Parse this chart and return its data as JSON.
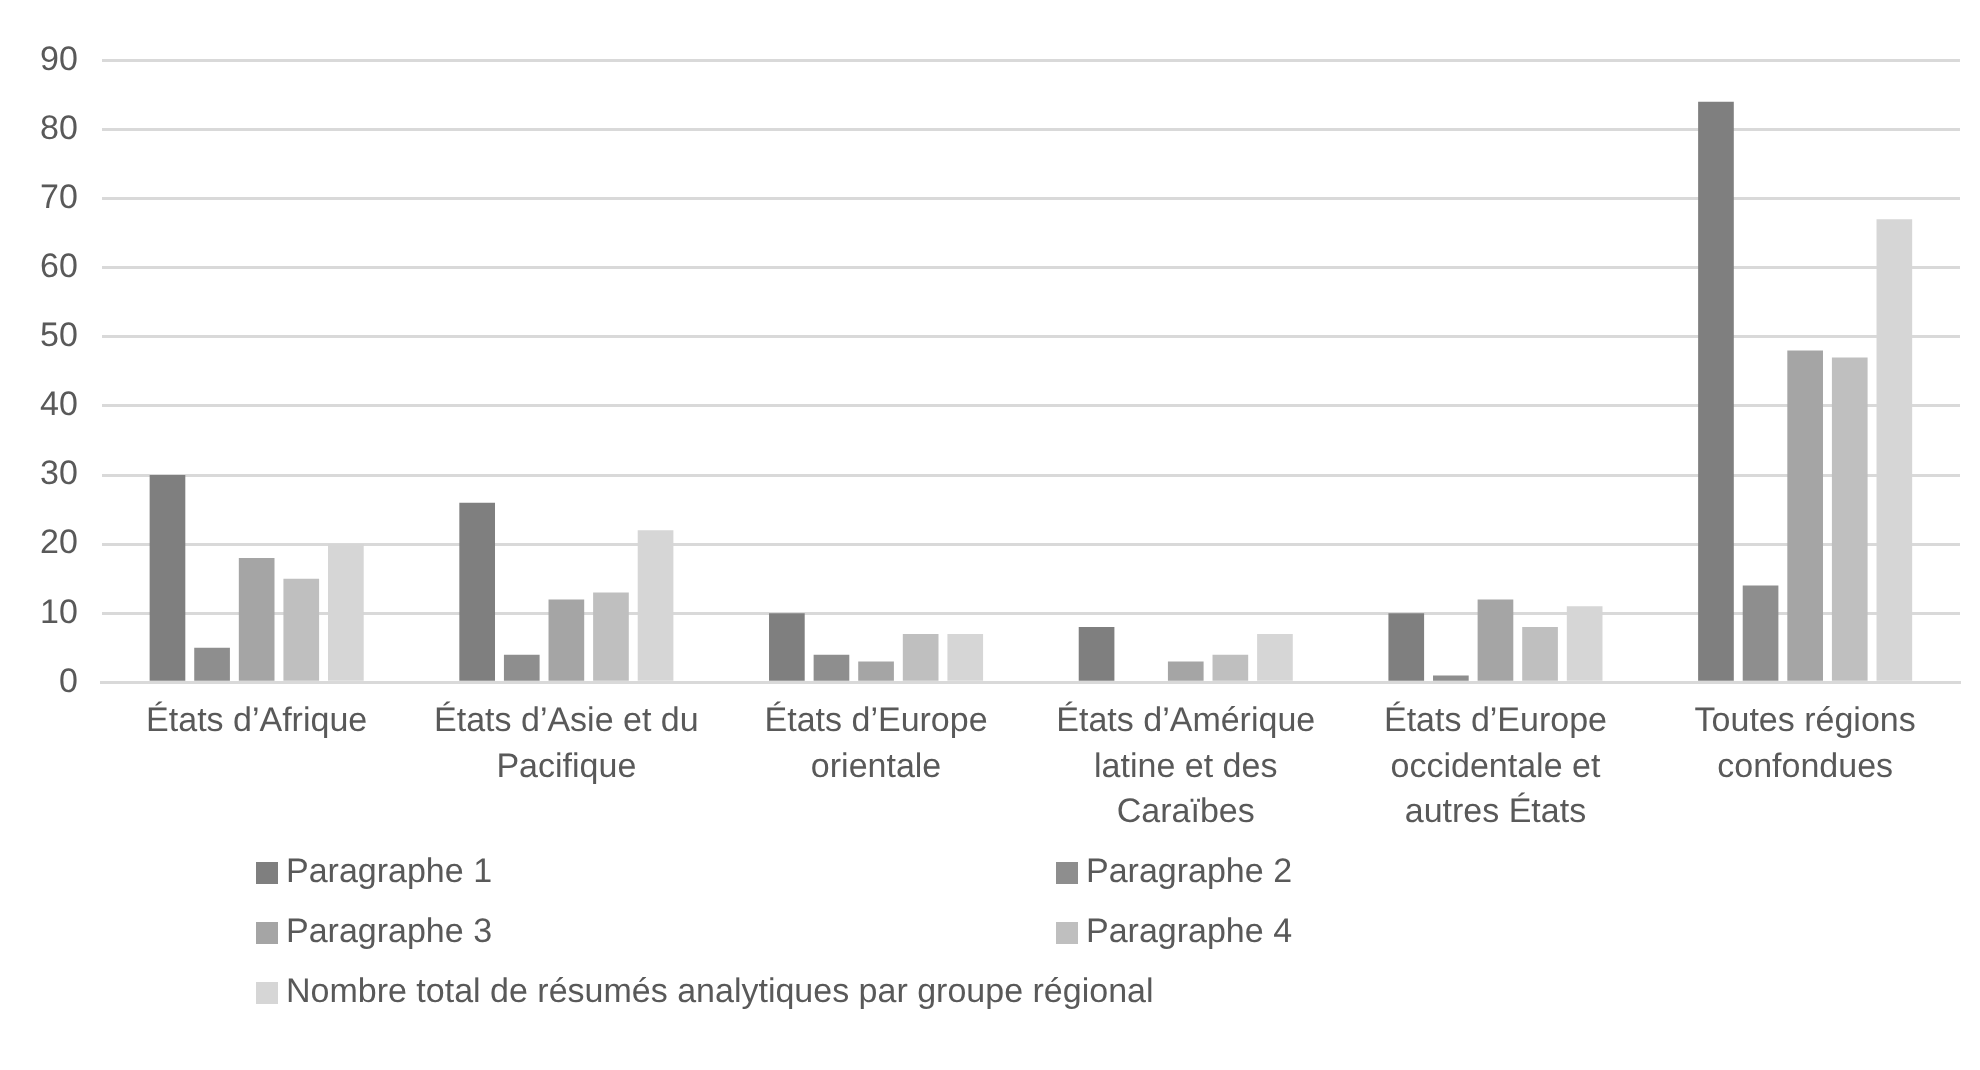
{
  "chart_data": {
    "type": "bar",
    "categories": [
      "États d’Afrique",
      "États d’Asie et du Pacifique",
      "États d’Europe orientale",
      "États d’Amérique latine et des Caraïbes",
      "États d’Europe occidentale et autres États",
      "Toutes régions confondues"
    ],
    "series": [
      {
        "name": "Paragraphe 1",
        "color": "#7f7f7f",
        "values": [
          30,
          26,
          10,
          8,
          10,
          84
        ]
      },
      {
        "name": "Paragraphe 2",
        "color": "#8e8e8e",
        "values": [
          5,
          4,
          4,
          0,
          1,
          14
        ]
      },
      {
        "name": "Paragraphe 3",
        "color": "#a5a5a5",
        "values": [
          18,
          12,
          3,
          3,
          12,
          48
        ]
      },
      {
        "name": "Paragraphe 4",
        "color": "#bfbfbf",
        "values": [
          15,
          13,
          7,
          4,
          8,
          47
        ]
      },
      {
        "name": "Nombre total de résumés analytiques par groupe régional",
        "color": "#d6d6d6",
        "values": [
          20,
          22,
          7,
          7,
          11,
          67
        ]
      }
    ],
    "ylim": [
      0,
      90
    ],
    "yticks": [
      0,
      10,
      20,
      30,
      40,
      50,
      60,
      70,
      80,
      90
    ],
    "grid": "y",
    "legend": "bottom"
  }
}
